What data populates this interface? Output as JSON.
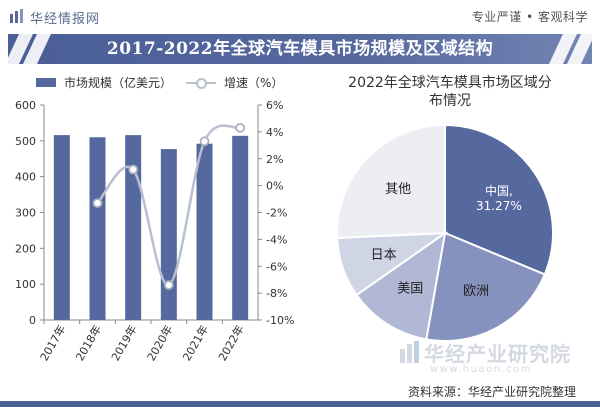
{
  "header": {
    "brand": "华经情报网",
    "slogan": "专业严谨 • 客观科学"
  },
  "title": "2017-2022年全球汽车模具市场规模及区域结构",
  "watermark": {
    "name": "华经产业研究院",
    "url": "www.huaon.com"
  },
  "source": "资料来源：华经产业研究院整理",
  "colors": {
    "bar": "#56699f",
    "line": "#b9bfcf",
    "title_bg": "#4a5f96"
  },
  "chart_data": [
    {
      "type": "bar",
      "legend_bar": "市场规模（亿美元）",
      "legend_line": "增速（%）",
      "categories": [
        "2017年",
        "2018年",
        "2019年",
        "2020年",
        "2021年",
        "2022年"
      ],
      "series": [
        {
          "name": "市场规模（亿美元）",
          "type": "bar",
          "axis": "left",
          "values": [
            516,
            510,
            516,
            477,
            492,
            514
          ]
        },
        {
          "name": "增速（%）",
          "type": "line",
          "axis": "right",
          "values": [
            null,
            -1.3,
            1.2,
            -7.4,
            3.3,
            4.3
          ]
        }
      ],
      "y_left": {
        "min": 0,
        "max": 600,
        "ticks": [
          "0",
          "100",
          "200",
          "300",
          "400",
          "500",
          "600"
        ]
      },
      "y_right": {
        "min": -10,
        "max": 6,
        "ticks": [
          "-10%",
          "-8%",
          "-6%",
          "-4%",
          "-2%",
          "0%",
          "2%",
          "4%",
          "6%"
        ]
      }
    },
    {
      "type": "pie",
      "title_line1": "2022年全球汽车模具市场区域分",
      "title_line2": "布情况",
      "slices": [
        {
          "label": "中国",
          "value": 31.27,
          "value_label": "31.27%",
          "color": "#56699f",
          "text_color": "#ffffff"
        },
        {
          "label": "欧洲",
          "value": 21.5,
          "color": "#8592bd",
          "text_color": "#222222"
        },
        {
          "label": "美国",
          "value": 12.5,
          "color": "#b0b8d6",
          "text_color": "#222222"
        },
        {
          "label": "日本",
          "value": 9.0,
          "color": "#d0d5e6",
          "text_color": "#222222"
        },
        {
          "label": "其他",
          "value": 25.73,
          "color": "#eceef4",
          "text_color": "#222222"
        }
      ]
    }
  ]
}
